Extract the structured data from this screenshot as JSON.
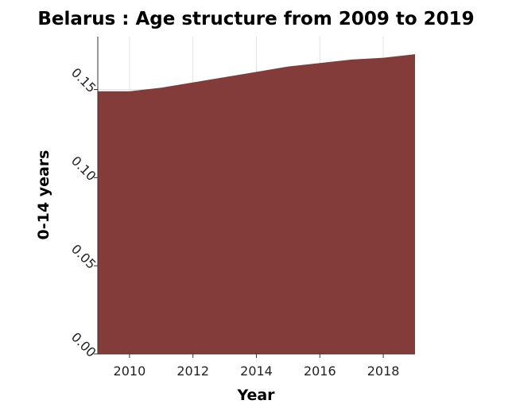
{
  "chart_data": {
    "type": "area",
    "title": "Belarus : Age structure from 2009 to 2019",
    "xlabel": "Year",
    "ylabel": "0-14 years",
    "x": [
      2009,
      2010,
      2011,
      2012,
      2013,
      2014,
      2015,
      2016,
      2017,
      2018,
      2019
    ],
    "series": [
      {
        "values": [
          0.149,
          0.149,
          0.151,
          0.154,
          0.157,
          0.16,
          0.163,
          0.165,
          0.167,
          0.168,
          0.17
        ]
      }
    ],
    "xlim": [
      2009,
      2019
    ],
    "ylim": [
      0,
      0.18
    ],
    "xticks": [
      2010,
      2012,
      2014,
      2016,
      2018
    ],
    "xtick_labels": [
      "2010",
      "2012",
      "2014",
      "2016",
      "2018"
    ],
    "yticks": [
      0,
      0.05,
      0.1,
      0.15
    ],
    "ytick_labels": [
      "0.00",
      "0.05",
      "0.10",
      "0.15"
    ],
    "grid": true,
    "colors": {
      "area": "#833c3a",
      "grid": "#e3e3e3",
      "axis": "#333333",
      "background": "#ffffff"
    }
  }
}
